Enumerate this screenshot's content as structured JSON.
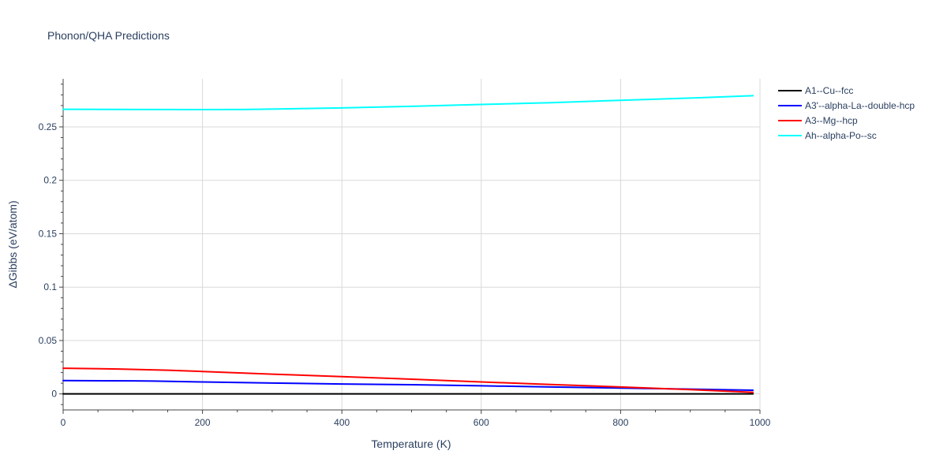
{
  "chart_data": {
    "type": "line",
    "title": "Phonon/QHA Predictions",
    "xlabel": "Temperature (K)",
    "ylabel": "ΔGibbs (eV/atom)",
    "xlim": [
      0,
      1000
    ],
    "ylim": [
      -0.015,
      0.295
    ],
    "x_ticks": [
      0,
      200,
      400,
      600,
      800,
      1000
    ],
    "x_tick_labels": [
      "0",
      "200",
      "400",
      "600",
      "800",
      "1000"
    ],
    "y_ticks": [
      0,
      0.05,
      0.1,
      0.15,
      0.2,
      0.25
    ],
    "y_tick_labels": [
      "0",
      "0.05",
      "0.1",
      "0.15",
      "0.2",
      "0.25"
    ],
    "grid": true,
    "legend_position": "top-right-outside",
    "series": [
      {
        "name": "A1--Cu--fcc",
        "color": "#000000",
        "x": [
          0,
          100,
          200,
          300,
          400,
          500,
          600,
          700,
          800,
          900,
          990
        ],
        "y": [
          0,
          0,
          0,
          0,
          0,
          0,
          0,
          0,
          0,
          0,
          0
        ]
      },
      {
        "name": "A3'--alpha-La--double-hcp",
        "color": "#0000ff",
        "x": [
          0,
          100,
          130,
          200,
          300,
          400,
          500,
          600,
          700,
          800,
          900,
          990
        ],
        "y": [
          0.0125,
          0.0122,
          0.012,
          0.0112,
          0.0102,
          0.0093,
          0.0086,
          0.0076,
          0.0065,
          0.0055,
          0.0045,
          0.0035
        ]
      },
      {
        "name": "A3--Mg--hcp",
        "color": "#ff0000",
        "x": [
          0,
          80,
          150,
          200,
          300,
          400,
          500,
          600,
          700,
          800,
          900,
          990
        ],
        "y": [
          0.024,
          0.0233,
          0.0222,
          0.021,
          0.0185,
          0.0162,
          0.0138,
          0.0112,
          0.0088,
          0.0065,
          0.004,
          0.0015
        ]
      },
      {
        "name": "Ah--alpha-Po--sc",
        "color": "#00ffff",
        "x": [
          0,
          100,
          200,
          260,
          300,
          400,
          500,
          600,
          700,
          800,
          900,
          990
        ],
        "y": [
          0.2665,
          0.2663,
          0.2662,
          0.2663,
          0.2667,
          0.2678,
          0.2693,
          0.271,
          0.2727,
          0.2749,
          0.277,
          0.2792
        ]
      }
    ]
  }
}
